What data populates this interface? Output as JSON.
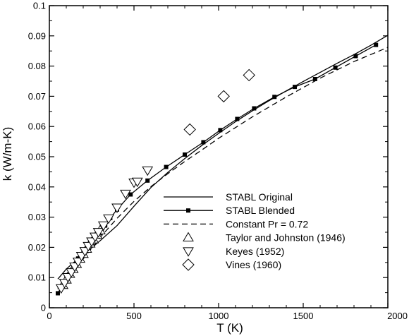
{
  "chart_data": {
    "type": "line",
    "xlabel": "T (K)",
    "ylabel": "k (W/m-K)",
    "xlim": [
      0,
      2000
    ],
    "ylim": [
      0,
      0.1
    ],
    "xticks": [
      {
        "value": 0,
        "label": "0"
      },
      {
        "value": 500,
        "label": "500"
      },
      {
        "value": 1000,
        "label": "1000"
      },
      {
        "value": 1500,
        "label": "1500"
      },
      {
        "value": 2000,
        "label": "2000"
      }
    ],
    "yticks": [
      {
        "value": 0,
        "label": "0"
      },
      {
        "value": 0.01,
        "label": "0.01"
      },
      {
        "value": 0.02,
        "label": "0.02"
      },
      {
        "value": 0.03,
        "label": "0.03"
      },
      {
        "value": 0.04,
        "label": "0.04"
      },
      {
        "value": 0.05,
        "label": "0.05"
      },
      {
        "value": 0.06,
        "label": "0.06"
      },
      {
        "value": 0.07,
        "label": "0.07"
      },
      {
        "value": 0.08,
        "label": "0.08"
      },
      {
        "value": 0.09,
        "label": "0.09"
      },
      {
        "value": 0.1,
        "label": "0.1"
      }
    ],
    "grid": false,
    "legend_position": "bottom-right",
    "series": [
      {
        "name": "STABL Original",
        "style": "solid",
        "marker": "none",
        "x": [
          50,
          100,
          150,
          200,
          300,
          400,
          500,
          600,
          700,
          800,
          900,
          1000,
          1100,
          1200,
          1300,
          1400,
          1500,
          1600,
          1700,
          1800,
          1900,
          2000
        ],
        "y": [
          0.0095,
          0.0128,
          0.0153,
          0.0175,
          0.0222,
          0.0272,
          0.0336,
          0.0398,
          0.0448,
          0.0494,
          0.0537,
          0.0577,
          0.0616,
          0.0652,
          0.0686,
          0.0718,
          0.0749,
          0.0779,
          0.0809,
          0.0838,
          0.0869,
          0.0902
        ]
      },
      {
        "name": "STABL Blended",
        "style": "solid",
        "marker": "square",
        "x": [
          50,
          110,
          170,
          230,
          260,
          300,
          330,
          360,
          400,
          480,
          580,
          690,
          800,
          910,
          1010,
          1110,
          1210,
          1330,
          1450,
          1570,
          1690,
          1810,
          1930
        ],
        "y": [
          0.0048,
          0.0108,
          0.0163,
          0.021,
          0.0227,
          0.0248,
          0.0272,
          0.0297,
          0.0325,
          0.0375,
          0.0421,
          0.0466,
          0.0507,
          0.0548,
          0.0588,
          0.0625,
          0.066,
          0.0698,
          0.0731,
          0.0757,
          0.0795,
          0.0833,
          0.087
        ]
      },
      {
        "name": "Constant Pr = 0.72",
        "style": "dashed",
        "marker": "none",
        "x": [
          50,
          100,
          200,
          300,
          400,
          500,
          600,
          700,
          800,
          900,
          1000,
          1200,
          1400,
          1600,
          1800,
          2000
        ],
        "y": [
          0.0065,
          0.0093,
          0.0162,
          0.0233,
          0.0296,
          0.0352,
          0.0401,
          0.0444,
          0.0484,
          0.0522,
          0.0561,
          0.0632,
          0.0698,
          0.076,
          0.0815,
          0.0862
        ]
      },
      {
        "name": "Taylor and Johnston (1946)",
        "style": "none",
        "marker": "triangle-up",
        "x": [
          80,
          100,
          120,
          140,
          160,
          180,
          200,
          220,
          240,
          260,
          280,
          300
        ],
        "y": [
          0.0075,
          0.0093,
          0.0112,
          0.0128,
          0.0145,
          0.0162,
          0.0178,
          0.0195,
          0.0212,
          0.0226,
          0.0242,
          0.0256
        ]
      },
      {
        "name": "Keyes (1952)",
        "style": "none",
        "marker": "triangle-down",
        "x": [
          70,
          90,
          110,
          130,
          150,
          170,
          190,
          210,
          230,
          250,
          270,
          290,
          320,
          350,
          400,
          450,
          500,
          520,
          580
        ],
        "y": [
          0.0065,
          0.0083,
          0.0102,
          0.0118,
          0.0137,
          0.0153,
          0.0172,
          0.0188,
          0.0205,
          0.022,
          0.0236,
          0.0251,
          0.0273,
          0.0296,
          0.0332,
          0.0378,
          0.0415,
          0.0418,
          0.0455
        ]
      },
      {
        "name": "Vines (1960)",
        "style": "none",
        "marker": "diamond",
        "x": [
          830,
          1030,
          1180
        ],
        "y": [
          0.059,
          0.07,
          0.077
        ]
      }
    ]
  }
}
